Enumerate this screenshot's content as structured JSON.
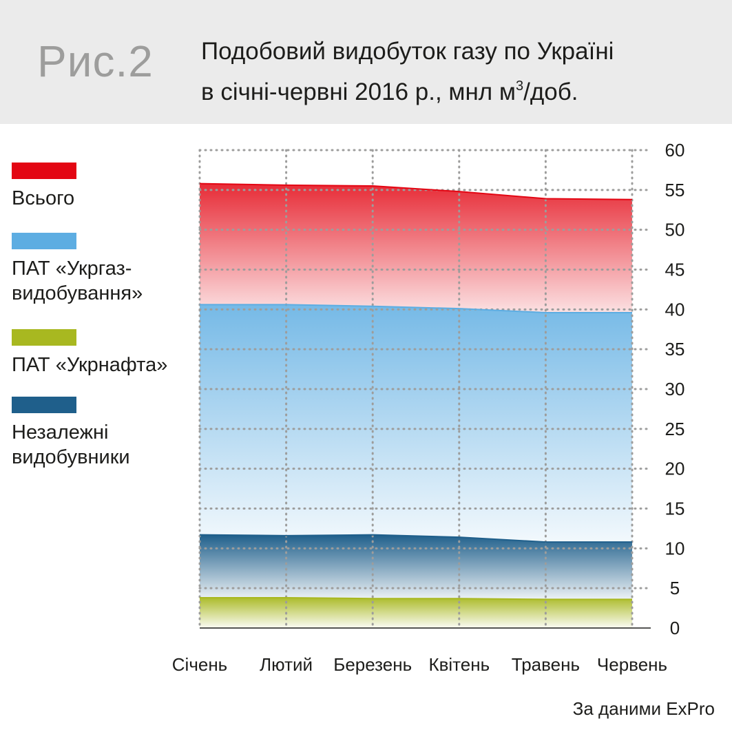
{
  "header": {
    "fig_label": "Рис.2",
    "title_line1": "Подобовий видобуток газу по Україні",
    "title_line2_pre": "в січні-червні 2016 р., мнл м",
    "title_sup": "3",
    "title_line2_post": "/доб."
  },
  "source": "За даними ExPro",
  "legend": [
    {
      "label": "Всього",
      "color": "#e30613"
    },
    {
      "label": "ПАТ «Укргаз-\nвидобування»",
      "color": "#5dade2"
    },
    {
      "label": "ПАТ «Укрнафта»",
      "color": "#a8b820"
    },
    {
      "label": "Незалежні\nвидобувники",
      "color": "#1f5f8b"
    }
  ],
  "chart_data": {
    "type": "area",
    "categories": [
      "Січень",
      "Лютий",
      "Березень",
      "Квітень",
      "Травень",
      "Червень"
    ],
    "ylim": [
      0,
      60
    ],
    "yticks": [
      0,
      5,
      10,
      15,
      20,
      25,
      30,
      35,
      40,
      45,
      50,
      55,
      60
    ],
    "grid": true,
    "legend_position": "left",
    "series": [
      {
        "name": "Всього",
        "values": [
          55.8,
          55.6,
          55.5,
          54.8,
          53.9,
          53.8
        ],
        "color": "#e30613"
      },
      {
        "name": "ПАТ «Укргаз-видобування»",
        "values": [
          40.6,
          40.6,
          40.4,
          40.1,
          39.6,
          39.6
        ],
        "color": "#5dade2"
      },
      {
        "name": "Незалежні видобувники",
        "values": [
          11.7,
          11.6,
          11.7,
          11.4,
          10.8,
          10.8
        ],
        "color": "#1f5f8b"
      },
      {
        "name": "ПАТ «Укрнафта»",
        "values": [
          3.8,
          3.8,
          3.7,
          3.7,
          3.6,
          3.6
        ],
        "color": "#a8b820"
      }
    ]
  }
}
